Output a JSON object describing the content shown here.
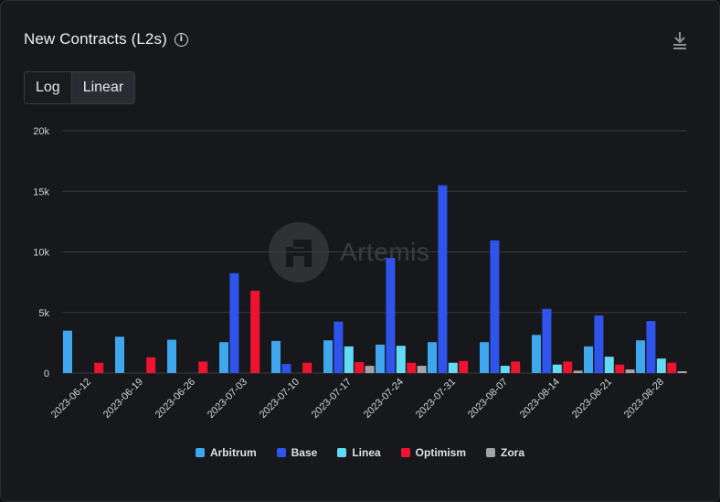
{
  "header": {
    "title": "New Contracts (L2s)",
    "info_icon": "info-icon",
    "download_icon": "download-icon"
  },
  "scale_toggle": {
    "options": [
      "Log",
      "Linear"
    ],
    "selected": "Linear"
  },
  "watermark": {
    "text": "Artemis"
  },
  "colors": {
    "Arbitrum": "#3ea7ee",
    "Base": "#2e54ec",
    "Linea": "#62dcf6",
    "Optimism": "#f0132f",
    "Zora": "#a3a3a8",
    "gridline": "#3a3b40",
    "axis_text": "#d4d4d8"
  },
  "chart_data": {
    "type": "bar",
    "title": "New Contracts (L2s)",
    "xlabel": "",
    "ylabel": "",
    "ylim": [
      0,
      20000
    ],
    "yticks": [
      0,
      5000,
      10000,
      15000,
      20000
    ],
    "ytick_labels": [
      "0",
      "5k",
      "10k",
      "15k",
      "20k"
    ],
    "grid": true,
    "legend_position": "bottom",
    "categories": [
      "2023-06-12",
      "2023-06-19",
      "2023-06-26",
      "2023-07-03",
      "2023-07-10",
      "2023-07-17",
      "2023-07-24",
      "2023-07-31",
      "2023-08-07",
      "2023-08-14",
      "2023-08-21",
      "2023-08-28"
    ],
    "series": [
      {
        "name": "Arbitrum",
        "values": [
          3500,
          3000,
          2750,
          2550,
          2650,
          2700,
          2350,
          2550,
          2550,
          3150,
          2200,
          2700
        ]
      },
      {
        "name": "Base",
        "values": [
          0,
          0,
          0,
          8250,
          750,
          4250,
          9500,
          15500,
          10950,
          5300,
          4750,
          4300
        ]
      },
      {
        "name": "Linea",
        "values": [
          0,
          0,
          0,
          0,
          0,
          2200,
          2250,
          850,
          600,
          700,
          1350,
          1200
        ]
      },
      {
        "name": "Optimism",
        "values": [
          850,
          1300,
          950,
          6800,
          850,
          900,
          850,
          1000,
          950,
          950,
          700,
          850
        ]
      },
      {
        "name": "Zora",
        "values": [
          0,
          0,
          0,
          0,
          0,
          600,
          600,
          0,
          0,
          200,
          300,
          150
        ]
      }
    ]
  }
}
